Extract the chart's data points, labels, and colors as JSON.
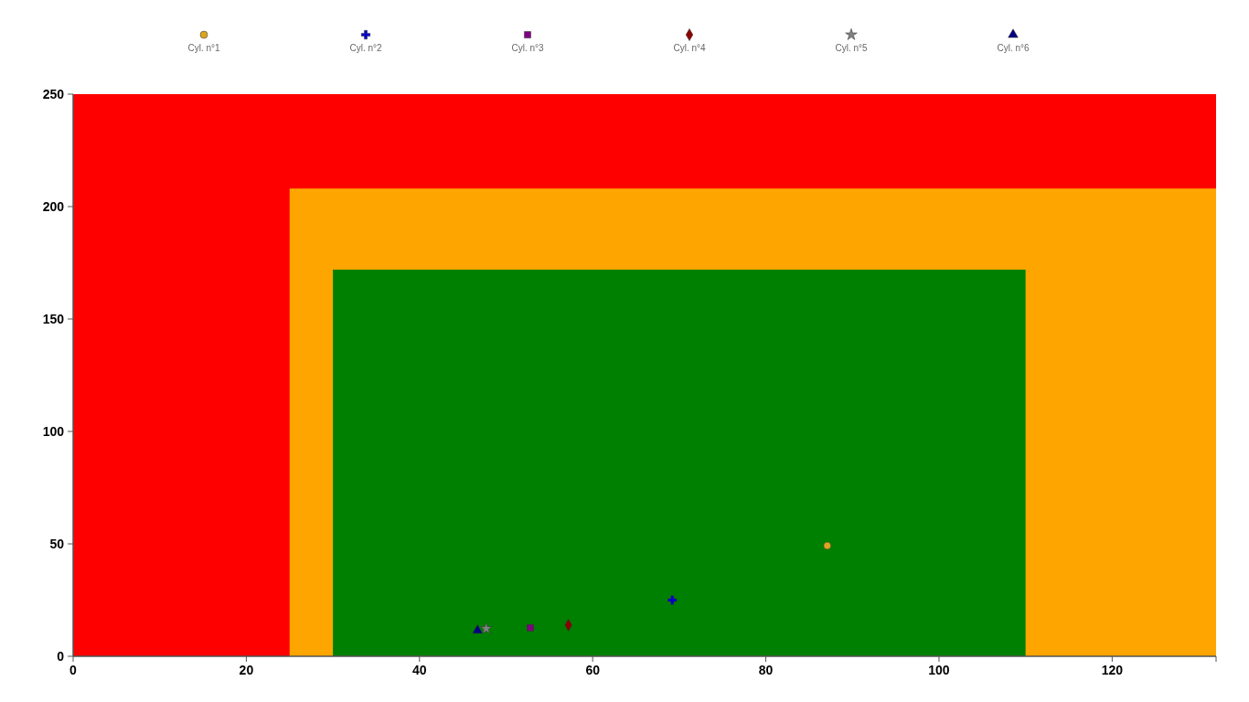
{
  "chart_data": {
    "type": "scatter",
    "xlim": [
      0,
      132
    ],
    "ylim": [
      0,
      250
    ],
    "xticks": [
      0,
      20,
      40,
      60,
      80,
      100,
      120
    ],
    "yticks": [
      0,
      50,
      100,
      150,
      200,
      250
    ],
    "grid": false,
    "legend": "top",
    "series": [
      {
        "type": "area",
        "color": "#ff0000",
        "x": [
          0,
          132
        ],
        "values": [
          250,
          250
        ]
      },
      {
        "type": "area",
        "color": "#ffa500",
        "x": [
          25,
          132
        ],
        "values": [
          208,
          208
        ]
      },
      {
        "type": "area",
        "color": "#008000",
        "x": [
          30,
          110
        ],
        "values": [
          172,
          172
        ]
      },
      {
        "name": "Cyl. n°1",
        "color": "#daa520",
        "marker": "circle",
        "x": [
          87.1
        ],
        "values": [
          49.2
        ]
      },
      {
        "name": "Cyl. n°2",
        "color": "#0000cd",
        "marker": "cross",
        "x": [
          69.2
        ],
        "values": [
          25
        ]
      },
      {
        "name": "Cyl. n°3",
        "color": "#800080",
        "marker": "square",
        "x": [
          52.8
        ],
        "values": [
          12.7
        ]
      },
      {
        "name": "Cyl. n°4",
        "color": "#8b0000",
        "marker": "diamond",
        "x": [
          57.2
        ],
        "values": [
          13.9
        ]
      },
      {
        "name": "Cyl. n°5",
        "color": "#808080",
        "marker": "star",
        "x": [
          47.7
        ],
        "values": [
          12.3
        ]
      },
      {
        "name": "Cyl. n°6",
        "color": "#000080",
        "marker": "triangle",
        "x": [
          46.7
        ],
        "values": [
          11.5
        ]
      }
    ]
  }
}
